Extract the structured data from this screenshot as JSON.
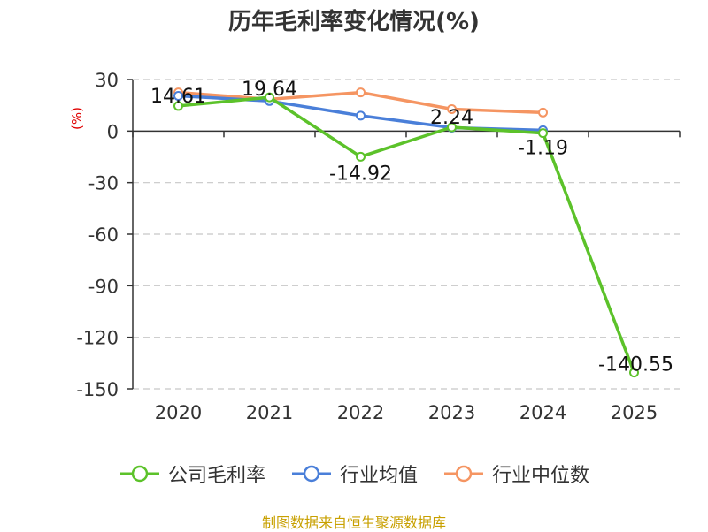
{
  "title": "历年毛利率变化情况(%)",
  "y_unit": "(%)",
  "source": "制图数据来自恒生聚源数据库",
  "chart_data": {
    "type": "line",
    "categories": [
      "2020",
      "2021",
      "2022",
      "2023",
      "2024",
      "2025"
    ],
    "ylim": [
      -150,
      30
    ],
    "yticks": [
      30,
      0,
      -30,
      -60,
      -90,
      -120,
      -150
    ],
    "grid": true,
    "legend_position": "bottom",
    "series": [
      {
        "name": "公司毛利率",
        "color": "#5cc22a",
        "values": [
          14.61,
          19.64,
          -14.92,
          2.24,
          -1.19,
          -140.55
        ],
        "labels": [
          "14.61",
          "19.64",
          "-14.92",
          "2.24",
          "-1.19",
          "-140.55"
        ]
      },
      {
        "name": "行业均值",
        "color": "#4a7fd9",
        "values": [
          20.5,
          17.5,
          9.0,
          2.0,
          0.5,
          null
        ]
      },
      {
        "name": "行业中位数",
        "color": "#f59562",
        "values": [
          22.5,
          18.5,
          22.5,
          12.8,
          10.8,
          null
        ]
      }
    ]
  }
}
